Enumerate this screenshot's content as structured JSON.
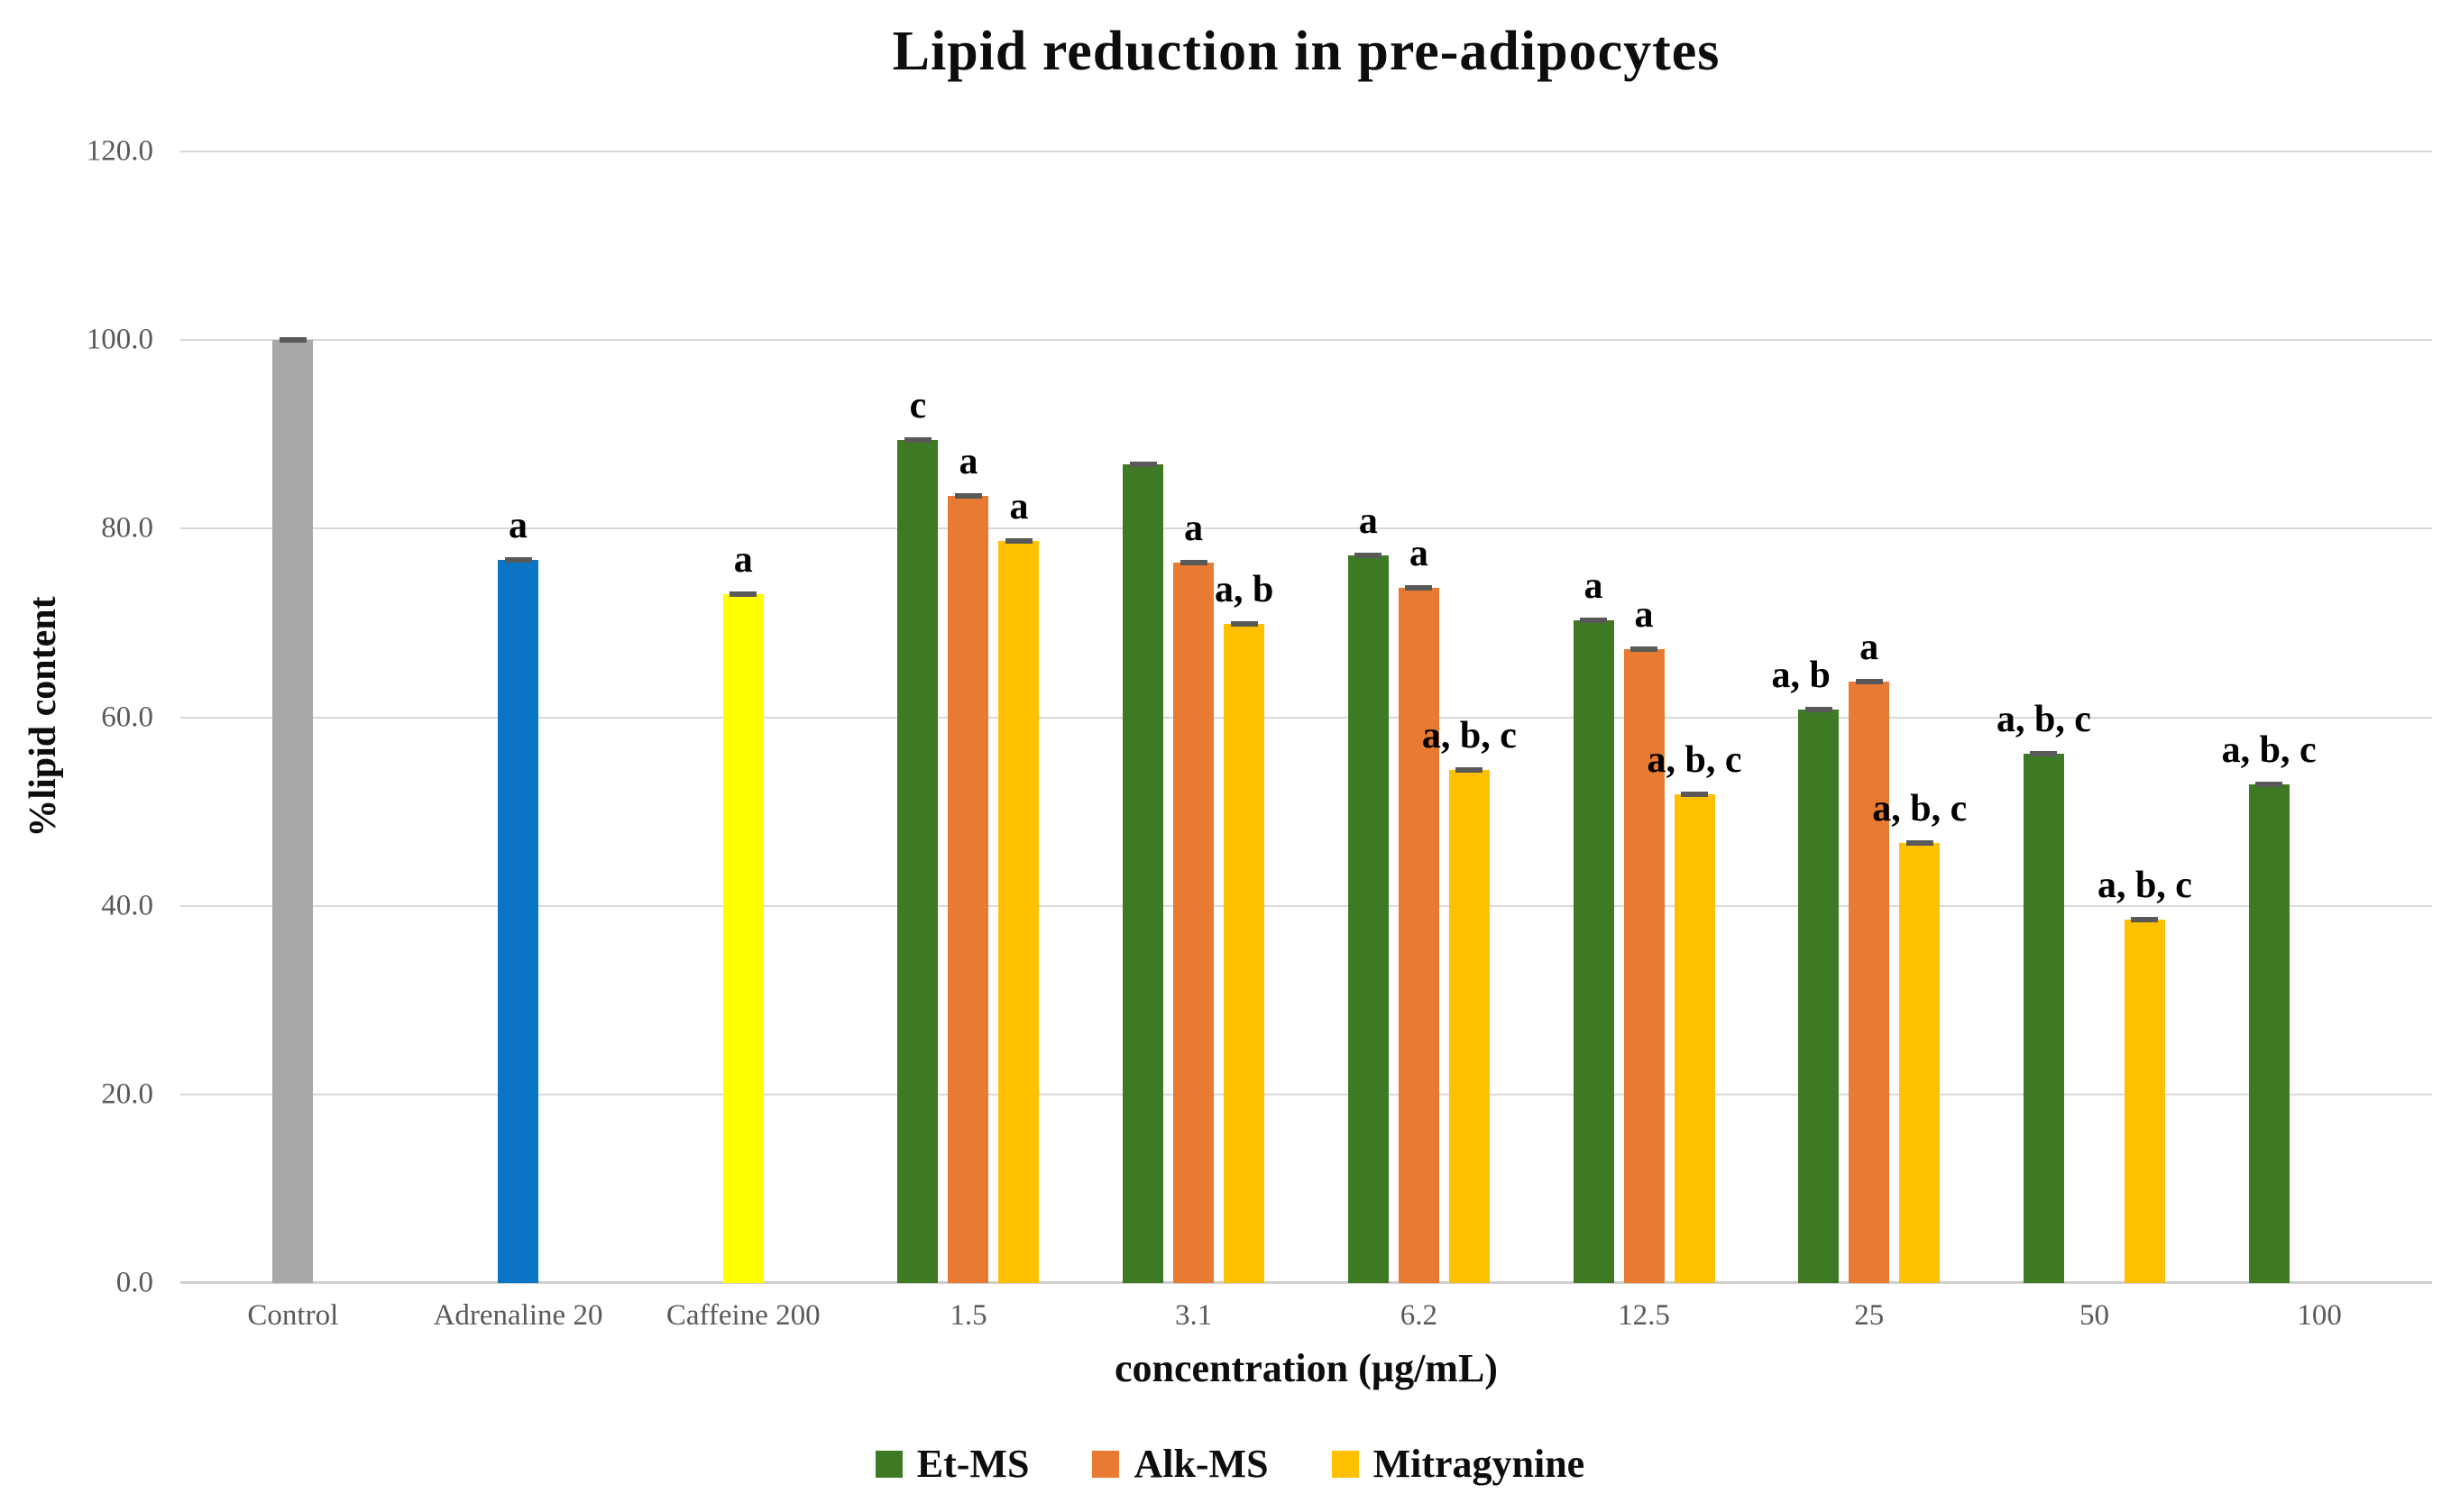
{
  "chart_data": {
    "type": "bar",
    "title": "Lipid reduction in pre-adipocytes",
    "xlabel": "concentration (µg/mL)",
    "ylabel": "%lipid content",
    "ylim": [
      0,
      120
    ],
    "yticks": [
      "0.0",
      "20.0",
      "40.0",
      "60.0",
      "80.0",
      "100.0",
      "120.0"
    ],
    "grid": true,
    "legend_position": "bottom-center",
    "error_bars": true,
    "colors": {
      "control": "#a8a8a8",
      "adrenaline": "#0b74c5",
      "caffeine": "#ffff00",
      "et_ms": "#3e7a23",
      "alk_ms": "#e87b31",
      "mitragynine": "#ffc000",
      "error_cap": "#595959",
      "gridline": "#d9d9d9",
      "tick_text": "#595959"
    },
    "series_legend": [
      {
        "name": "Et-MS",
        "color_key": "et_ms"
      },
      {
        "name": "Alk-MS",
        "color_key": "alk_ms"
      },
      {
        "name": "Mitragynine",
        "color_key": "mitragynine"
      }
    ],
    "groups": [
      {
        "category": "Control",
        "bars": [
          {
            "series": "Control",
            "slot": 1,
            "value": 100.0,
            "label": "",
            "color_key": "control"
          }
        ]
      },
      {
        "category": "Adrenaline 20",
        "bars": [
          {
            "series": "Adrenaline 20",
            "slot": 1,
            "value": 76.7,
            "label": "a",
            "color_key": "adrenaline"
          }
        ]
      },
      {
        "category": "Caffeine 200",
        "bars": [
          {
            "series": "Caffeine 200",
            "slot": 1,
            "value": 73.1,
            "label": "a",
            "color_key": "caffeine"
          }
        ]
      },
      {
        "category": "1.5",
        "bars": [
          {
            "series": "Et-MS",
            "slot": 0,
            "value": 89.4,
            "label": "c",
            "color_key": "et_ms"
          },
          {
            "series": "Alk-MS",
            "slot": 1,
            "value": 83.5,
            "label": "a",
            "color_key": "alk_ms"
          },
          {
            "series": "Mitragynine",
            "slot": 2,
            "value": 78.7,
            "label": "a",
            "color_key": "mitragynine"
          }
        ]
      },
      {
        "category": "3.1",
        "bars": [
          {
            "series": "Et-MS",
            "slot": 0,
            "value": 86.8,
            "label": "",
            "color_key": "et_ms"
          },
          {
            "series": "Alk-MS",
            "slot": 1,
            "value": 76.4,
            "label": "a",
            "color_key": "alk_ms"
          },
          {
            "series": "Mitragynine",
            "slot": 2,
            "value": 69.9,
            "label": "a, b",
            "color_key": "mitragynine"
          }
        ]
      },
      {
        "category": "6.2",
        "bars": [
          {
            "series": "Et-MS",
            "slot": 0,
            "value": 77.2,
            "label": "a",
            "color_key": "et_ms"
          },
          {
            "series": "Alk-MS",
            "slot": 1,
            "value": 73.7,
            "label": "a",
            "color_key": "alk_ms"
          },
          {
            "series": "Mitragynine",
            "slot": 2,
            "value": 54.4,
            "label": "a, b, c",
            "color_key": "mitragynine"
          }
        ]
      },
      {
        "category": "12.5",
        "bars": [
          {
            "series": "Et-MS",
            "slot": 0,
            "value": 70.3,
            "label": "a",
            "color_key": "et_ms"
          },
          {
            "series": "Alk-MS",
            "slot": 1,
            "value": 67.2,
            "label": "a",
            "color_key": "alk_ms"
          },
          {
            "series": "Mitragynine",
            "slot": 2,
            "value": 51.8,
            "label": "a, b, c",
            "color_key": "mitragynine"
          }
        ]
      },
      {
        "category": "25",
        "bars": [
          {
            "series": "Et-MS",
            "slot": 0,
            "value": 60.8,
            "label": "a, b",
            "color_key": "et_ms"
          },
          {
            "series": "Alk-MS",
            "slot": 1,
            "value": 63.8,
            "label": "a",
            "color_key": "alk_ms"
          },
          {
            "series": "Mitragynine",
            "slot": 2,
            "value": 46.7,
            "label": "a, b, c",
            "color_key": "mitragynine"
          }
        ]
      },
      {
        "category": "50",
        "bars": [
          {
            "series": "Et-MS",
            "slot": 0,
            "value": 56.1,
            "label": "a, b, c",
            "color_key": "et_ms"
          },
          {
            "series": "Mitragynine",
            "slot": 2,
            "value": 38.5,
            "label": "a, b, c",
            "color_key": "mitragynine"
          }
        ]
      },
      {
        "category": "100",
        "bars": [
          {
            "series": "Et-MS",
            "slot": 0,
            "value": 52.9,
            "label": "a, b, c",
            "color_key": "et_ms"
          }
        ]
      }
    ]
  }
}
